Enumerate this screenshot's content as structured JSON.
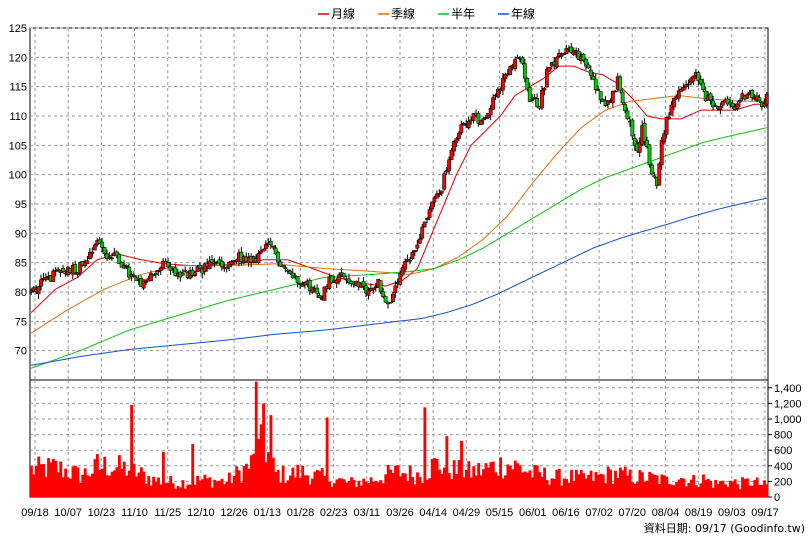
{
  "chart_data": {
    "type": "candlestick",
    "legend": [
      {
        "name": "月線",
        "color": "#e00000"
      },
      {
        "name": "季線",
        "color": "#e07010"
      },
      {
        "name": "半年",
        "color": "#10c010"
      },
      {
        "name": "年線",
        "color": "#1050d0"
      }
    ],
    "legend_placement": "top-center",
    "grid": true,
    "x_tick_labels": [
      "09/18",
      "10/07",
      "10/23",
      "11/10",
      "11/25",
      "12/10",
      "12/26",
      "01/13",
      "01/28",
      "02/23",
      "03/11",
      "03/26",
      "04/14",
      "04/29",
      "05/15",
      "06/01",
      "06/16",
      "07/02",
      "07/20",
      "08/04",
      "08/19",
      "09/03",
      "09/17"
    ],
    "price_axis": {
      "ylim": [
        65,
        125
      ],
      "ticks": [
        70,
        75,
        80,
        85,
        90,
        95,
        100,
        105,
        110,
        115,
        120,
        125
      ]
    },
    "volume_axis": {
      "ylim": [
        0,
        1500
      ],
      "ticks": [
        "0",
        "200",
        "400",
        "600",
        "800",
        "1,000",
        "1,200",
        "1,400"
      ]
    },
    "price_anchors": [
      [
        0,
        80
      ],
      [
        5,
        82
      ],
      [
        10,
        83
      ],
      [
        15,
        84
      ],
      [
        19,
        84
      ],
      [
        23,
        86
      ],
      [
        27,
        89
      ],
      [
        31,
        86
      ],
      [
        35,
        86
      ],
      [
        40,
        83
      ],
      [
        45,
        81
      ],
      [
        50,
        83
      ],
      [
        55,
        85
      ],
      [
        60,
        83
      ],
      [
        65,
        83
      ],
      [
        70,
        84
      ],
      [
        75,
        85
      ],
      [
        80,
        84
      ],
      [
        85,
        86
      ],
      [
        90,
        85
      ],
      [
        95,
        87
      ],
      [
        98,
        88
      ],
      [
        102,
        85
      ],
      [
        106,
        83
      ],
      [
        110,
        82
      ],
      [
        114,
        81
      ],
      [
        118,
        79
      ],
      [
        122,
        82
      ],
      [
        126,
        83
      ],
      [
        130,
        82
      ],
      [
        134,
        81
      ],
      [
        138,
        80
      ],
      [
        142,
        82
      ],
      [
        145,
        78
      ],
      [
        148,
        79
      ],
      [
        152,
        84
      ],
      [
        156,
        86
      ],
      [
        160,
        91
      ],
      [
        164,
        95
      ],
      [
        168,
        98
      ],
      [
        172,
        104
      ],
      [
        176,
        108
      ],
      [
        180,
        110
      ],
      [
        184,
        109
      ],
      [
        188,
        112
      ],
      [
        192,
        115
      ],
      [
        196,
        118
      ],
      [
        200,
        120
      ],
      [
        204,
        113
      ],
      [
        208,
        112
      ],
      [
        212,
        119
      ],
      [
        216,
        120
      ],
      [
        220,
        122
      ],
      [
        224,
        120
      ],
      [
        228,
        118
      ],
      [
        232,
        114
      ],
      [
        236,
        112
      ],
      [
        240,
        116
      ],
      [
        244,
        110
      ],
      [
        248,
        104
      ],
      [
        250,
        108
      ],
      [
        253,
        102
      ],
      [
        256,
        98
      ],
      [
        258,
        106
      ],
      [
        262,
        112
      ],
      [
        266,
        114
      ],
      [
        270,
        116
      ],
      [
        272,
        117
      ],
      [
        276,
        113
      ],
      [
        280,
        112
      ],
      [
        284,
        112
      ],
      [
        288,
        111
      ],
      [
        290,
        113
      ],
      [
        293,
        114
      ],
      [
        296,
        113
      ],
      [
        299,
        112
      ],
      [
        301,
        113
      ]
    ],
    "ma_month": [
      [
        0,
        76.5
      ],
      [
        10,
        80.5
      ],
      [
        19,
        82.5
      ],
      [
        27,
        85.5
      ],
      [
        35,
        86.5
      ],
      [
        45,
        85.5
      ],
      [
        55,
        84.8
      ],
      [
        65,
        84.5
      ],
      [
        75,
        84.5
      ],
      [
        85,
        84.8
      ],
      [
        95,
        85.5
      ],
      [
        105,
        85.5
      ],
      [
        115,
        84
      ],
      [
        125,
        82.5
      ],
      [
        135,
        81.5
      ],
      [
        145,
        81
      ],
      [
        152,
        82
      ],
      [
        158,
        84
      ],
      [
        163,
        89
      ],
      [
        168,
        94
      ],
      [
        174,
        100
      ],
      [
        180,
        105
      ],
      [
        186,
        107.5
      ],
      [
        192,
        110
      ],
      [
        198,
        113.5
      ],
      [
        204,
        115
      ],
      [
        210,
        116.5
      ],
      [
        216,
        118.5
      ],
      [
        222,
        118.5
      ],
      [
        228,
        117.5
      ],
      [
        234,
        117
      ],
      [
        240,
        115.5
      ],
      [
        246,
        113
      ],
      [
        252,
        110
      ],
      [
        258,
        109.5
      ],
      [
        266,
        109.5
      ],
      [
        274,
        111
      ],
      [
        280,
        111
      ],
      [
        288,
        111
      ],
      [
        296,
        112
      ],
      [
        301,
        112
      ]
    ],
    "ma_quarter": [
      [
        0,
        73
      ],
      [
        15,
        77
      ],
      [
        30,
        80.5
      ],
      [
        45,
        83
      ],
      [
        60,
        84.5
      ],
      [
        80,
        84.5
      ],
      [
        100,
        84.8
      ],
      [
        120,
        84
      ],
      [
        140,
        83.5
      ],
      [
        155,
        83
      ],
      [
        165,
        84
      ],
      [
        175,
        86
      ],
      [
        185,
        89
      ],
      [
        195,
        93
      ],
      [
        205,
        98.5
      ],
      [
        215,
        103.5
      ],
      [
        225,
        108
      ],
      [
        235,
        111
      ],
      [
        245,
        112.5
      ],
      [
        255,
        113
      ],
      [
        265,
        113.5
      ],
      [
        275,
        113
      ],
      [
        290,
        112.5
      ],
      [
        301,
        112.5
      ]
    ],
    "ma_half": [
      [
        0,
        67
      ],
      [
        20,
        70
      ],
      [
        40,
        73.5
      ],
      [
        60,
        76
      ],
      [
        80,
        78.5
      ],
      [
        100,
        80.5
      ],
      [
        120,
        82.5
      ],
      [
        140,
        83
      ],
      [
        155,
        83.5
      ],
      [
        165,
        84
      ],
      [
        175,
        85.5
      ],
      [
        185,
        87.5
      ],
      [
        195,
        90
      ],
      [
        205,
        92.5
      ],
      [
        215,
        95
      ],
      [
        225,
        97.5
      ],
      [
        235,
        99.5
      ],
      [
        245,
        101
      ],
      [
        255,
        102.5
      ],
      [
        265,
        104
      ],
      [
        275,
        105.5
      ],
      [
        285,
        106.5
      ],
      [
        301,
        108
      ]
    ],
    "ma_year": [
      [
        0,
        67.5
      ],
      [
        20,
        69
      ],
      [
        40,
        70.2
      ],
      [
        60,
        71
      ],
      [
        80,
        71.8
      ],
      [
        100,
        72.8
      ],
      [
        120,
        73.5
      ],
      [
        140,
        74.5
      ],
      [
        160,
        75.5
      ],
      [
        170,
        76.5
      ],
      [
        180,
        77.8
      ],
      [
        190,
        79.5
      ],
      [
        200,
        81.5
      ],
      [
        210,
        83.5
      ],
      [
        220,
        85.5
      ],
      [
        230,
        87.5
      ],
      [
        240,
        89
      ],
      [
        250,
        90.3
      ],
      [
        260,
        91.5
      ],
      [
        270,
        92.8
      ],
      [
        280,
        94
      ],
      [
        290,
        95
      ],
      [
        301,
        96
      ]
    ],
    "volume_anchors": [
      [
        0,
        350
      ],
      [
        10,
        380
      ],
      [
        20,
        280
      ],
      [
        30,
        400
      ],
      [
        40,
        360
      ],
      [
        50,
        220
      ],
      [
        60,
        180
      ],
      [
        70,
        220
      ],
      [
        80,
        200
      ],
      [
        90,
        420
      ],
      [
        95,
        700
      ],
      [
        100,
        300
      ],
      [
        105,
        280
      ],
      [
        110,
        320
      ],
      [
        115,
        280
      ],
      [
        120,
        250
      ],
      [
        125,
        220
      ],
      [
        130,
        180
      ],
      [
        135,
        200
      ],
      [
        140,
        220
      ],
      [
        145,
        280
      ],
      [
        150,
        320
      ],
      [
        155,
        300
      ],
      [
        160,
        280
      ],
      [
        165,
        420
      ],
      [
        170,
        380
      ],
      [
        175,
        330
      ],
      [
        180,
        320
      ],
      [
        185,
        350
      ],
      [
        190,
        400
      ],
      [
        195,
        420
      ],
      [
        200,
        380
      ],
      [
        205,
        300
      ],
      [
        210,
        280
      ],
      [
        215,
        250
      ],
      [
        220,
        260
      ],
      [
        225,
        240
      ],
      [
        230,
        250
      ],
      [
        235,
        280
      ],
      [
        240,
        300
      ],
      [
        245,
        260
      ],
      [
        250,
        250
      ],
      [
        255,
        240
      ],
      [
        260,
        210
      ],
      [
        265,
        260
      ],
      [
        270,
        200
      ],
      [
        275,
        230
      ],
      [
        280,
        170
      ],
      [
        285,
        200
      ],
      [
        290,
        170
      ],
      [
        295,
        200
      ],
      [
        301,
        140
      ]
    ],
    "volume_spikes": [
      [
        27,
        550
      ],
      [
        41,
        1180
      ],
      [
        54,
        580
      ],
      [
        66,
        680
      ],
      [
        92,
        1480
      ],
      [
        95,
        1200
      ],
      [
        98,
        1050
      ],
      [
        121,
        1020
      ],
      [
        161,
        1150
      ],
      [
        170,
        780
      ],
      [
        176,
        720
      ]
    ]
  },
  "credit": "資料日期: 09/17 (Goodinfo.tw)"
}
